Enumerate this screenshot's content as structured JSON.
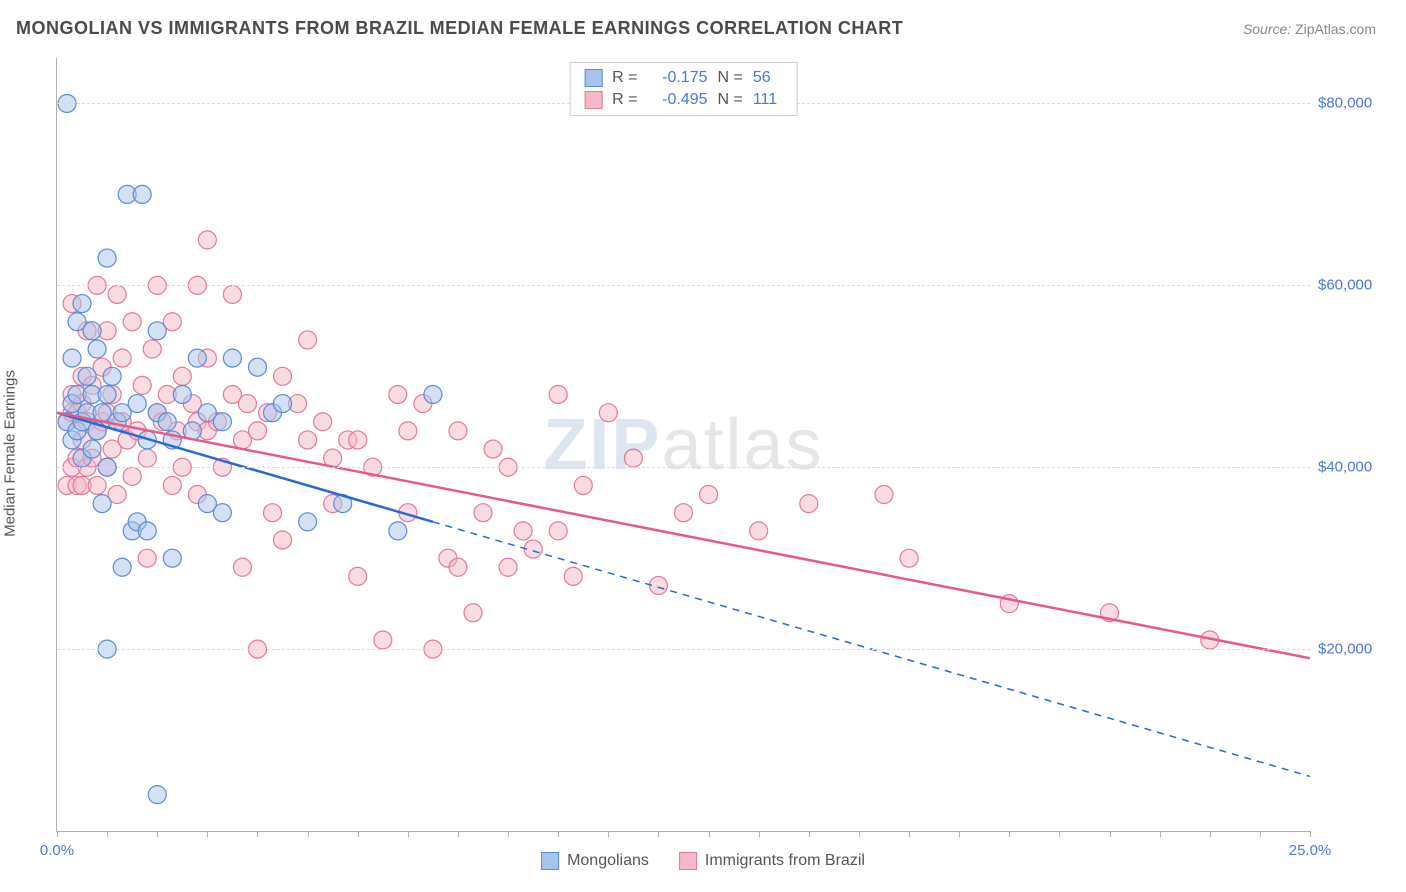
{
  "title": "MONGOLIAN VS IMMIGRANTS FROM BRAZIL MEDIAN FEMALE EARNINGS CORRELATION CHART",
  "source_prefix": "Source: ",
  "source_name": "ZipAtlas.com",
  "watermark_a": "ZIP",
  "watermark_b": "atlas",
  "chart": {
    "type": "scatter",
    "xlabel": "",
    "ylabel": "Median Female Earnings",
    "xlim": [
      0,
      25
    ],
    "ylim": [
      0,
      85000
    ],
    "x_ticks_minor_step": 1,
    "x_tick_labels": [
      {
        "value": 0,
        "label": "0.0%"
      },
      {
        "value": 25,
        "label": "25.0%"
      }
    ],
    "y_grid": [
      20000,
      40000,
      60000,
      80000
    ],
    "y_tick_labels": [
      {
        "value": 20000,
        "label": "$20,000"
      },
      {
        "value": 40000,
        "label": "$40,000"
      },
      {
        "value": 60000,
        "label": "$60,000"
      },
      {
        "value": 80000,
        "label": "$80,000"
      }
    ],
    "background_color": "#ffffff",
    "grid_color": "#dcdcdc",
    "axis_color": "#b0b0b0",
    "label_color": "#555555",
    "tick_label_color": "#4a77d4",
    "title_fontsize": 18,
    "label_fontsize": 15,
    "marker_radius": 9,
    "marker_opacity": 0.5,
    "series": [
      {
        "key": "mongolians",
        "name": "Mongolians",
        "fill": "#a9c4ec",
        "stroke": "#5b8bd4",
        "line_color": "#2a6ad0",
        "line_width": 2.5,
        "R": "-0.175",
        "N": "56",
        "regression": {
          "x1": 0,
          "y1": 46000,
          "x2": 25,
          "y2": 6000,
          "dash_after_x": 7.5
        },
        "points": [
          [
            0.2,
            80000
          ],
          [
            0.2,
            45000
          ],
          [
            0.3,
            47000
          ],
          [
            0.3,
            43000
          ],
          [
            0.3,
            52000
          ],
          [
            0.4,
            56000
          ],
          [
            0.4,
            48000
          ],
          [
            0.4,
            44000
          ],
          [
            0.5,
            58000
          ],
          [
            0.5,
            45000
          ],
          [
            0.5,
            41000
          ],
          [
            0.6,
            50000
          ],
          [
            0.6,
            46000
          ],
          [
            0.7,
            55000
          ],
          [
            0.7,
            48000
          ],
          [
            0.7,
            42000
          ],
          [
            0.8,
            44000
          ],
          [
            0.8,
            53000
          ],
          [
            0.9,
            46000
          ],
          [
            0.9,
            36000
          ],
          [
            1.0,
            63000
          ],
          [
            1.0,
            48000
          ],
          [
            1.0,
            40000
          ],
          [
            1.0,
            20000
          ],
          [
            1.1,
            50000
          ],
          [
            1.2,
            45000
          ],
          [
            1.3,
            46000
          ],
          [
            1.3,
            29000
          ],
          [
            1.4,
            70000
          ],
          [
            1.5,
            33000
          ],
          [
            1.6,
            47000
          ],
          [
            1.6,
            34000
          ],
          [
            1.7,
            70000
          ],
          [
            1.8,
            43000
          ],
          [
            1.8,
            33000
          ],
          [
            2.0,
            46000
          ],
          [
            2.0,
            55000
          ],
          [
            2.0,
            4000
          ],
          [
            2.2,
            45000
          ],
          [
            2.3,
            43000
          ],
          [
            2.3,
            30000
          ],
          [
            2.5,
            48000
          ],
          [
            2.7,
            44000
          ],
          [
            2.8,
            52000
          ],
          [
            3.0,
            46000
          ],
          [
            3.0,
            36000
          ],
          [
            3.3,
            45000
          ],
          [
            3.3,
            35000
          ],
          [
            3.5,
            52000
          ],
          [
            4.0,
            51000
          ],
          [
            4.3,
            46000
          ],
          [
            4.5,
            47000
          ],
          [
            5.0,
            34000
          ],
          [
            5.7,
            36000
          ],
          [
            6.8,
            33000
          ],
          [
            7.5,
            48000
          ]
        ]
      },
      {
        "key": "brazil",
        "name": "Immigrants from Brazil",
        "fill": "#f4b8c6",
        "stroke": "#e47a97",
        "line_color": "#e55a88",
        "line_width": 2.5,
        "R": "-0.495",
        "N": "111",
        "regression": {
          "x1": 0,
          "y1": 46000,
          "x2": 25,
          "y2": 19000,
          "dash_after_x": 25
        },
        "points": [
          [
            0.2,
            45000
          ],
          [
            0.2,
            38000
          ],
          [
            0.3,
            46000
          ],
          [
            0.3,
            58000
          ],
          [
            0.3,
            40000
          ],
          [
            0.3,
            48000
          ],
          [
            0.4,
            41000
          ],
          [
            0.4,
            46000
          ],
          [
            0.4,
            38000
          ],
          [
            0.5,
            50000
          ],
          [
            0.5,
            43000
          ],
          [
            0.5,
            38000
          ],
          [
            0.5,
            47000
          ],
          [
            0.6,
            55000
          ],
          [
            0.6,
            45000
          ],
          [
            0.6,
            40000
          ],
          [
            0.7,
            41000
          ],
          [
            0.7,
            49000
          ],
          [
            0.8,
            60000
          ],
          [
            0.8,
            44000
          ],
          [
            0.8,
            38000
          ],
          [
            0.9,
            51000
          ],
          [
            0.9,
            45000
          ],
          [
            1.0,
            46000
          ],
          [
            1.0,
            55000
          ],
          [
            1.0,
            40000
          ],
          [
            1.1,
            48000
          ],
          [
            1.1,
            42000
          ],
          [
            1.2,
            59000
          ],
          [
            1.2,
            37000
          ],
          [
            1.3,
            52000
          ],
          [
            1.3,
            45000
          ],
          [
            1.4,
            43000
          ],
          [
            1.5,
            56000
          ],
          [
            1.5,
            39000
          ],
          [
            1.6,
            44000
          ],
          [
            1.7,
            49000
          ],
          [
            1.8,
            41000
          ],
          [
            1.8,
            30000
          ],
          [
            1.9,
            53000
          ],
          [
            2.0,
            46000
          ],
          [
            2.0,
            60000
          ],
          [
            2.1,
            45000
          ],
          [
            2.2,
            48000
          ],
          [
            2.3,
            56000
          ],
          [
            2.3,
            38000
          ],
          [
            2.4,
            44000
          ],
          [
            2.5,
            50000
          ],
          [
            2.5,
            40000
          ],
          [
            2.7,
            47000
          ],
          [
            2.8,
            45000
          ],
          [
            2.8,
            37000
          ],
          [
            2.8,
            60000
          ],
          [
            3.0,
            65000
          ],
          [
            3.0,
            44000
          ],
          [
            3.0,
            52000
          ],
          [
            3.2,
            45000
          ],
          [
            3.3,
            40000
          ],
          [
            3.5,
            48000
          ],
          [
            3.5,
            59000
          ],
          [
            3.7,
            43000
          ],
          [
            3.7,
            29000
          ],
          [
            3.8,
            47000
          ],
          [
            4.0,
            44000
          ],
          [
            4.0,
            20000
          ],
          [
            4.2,
            46000
          ],
          [
            4.3,
            35000
          ],
          [
            4.5,
            50000
          ],
          [
            4.5,
            32000
          ],
          [
            4.8,
            47000
          ],
          [
            5.0,
            43000
          ],
          [
            5.0,
            54000
          ],
          [
            5.3,
            45000
          ],
          [
            5.5,
            41000
          ],
          [
            5.5,
            36000
          ],
          [
            5.8,
            43000
          ],
          [
            6.0,
            43000
          ],
          [
            6.0,
            28000
          ],
          [
            6.3,
            40000
          ],
          [
            6.5,
            21000
          ],
          [
            6.8,
            48000
          ],
          [
            7.0,
            44000
          ],
          [
            7.0,
            35000
          ],
          [
            7.3,
            47000
          ],
          [
            7.5,
            20000
          ],
          [
            7.8,
            30000
          ],
          [
            8.0,
            29000
          ],
          [
            8.0,
            44000
          ],
          [
            8.3,
            24000
          ],
          [
            8.5,
            35000
          ],
          [
            9.0,
            40000
          ],
          [
            9.0,
            29000
          ],
          [
            9.3,
            33000
          ],
          [
            9.5,
            31000
          ],
          [
            10.0,
            48000
          ],
          [
            10.0,
            33000
          ],
          [
            10.3,
            28000
          ],
          [
            11.0,
            46000
          ],
          [
            11.5,
            41000
          ],
          [
            12.0,
            27000
          ],
          [
            12.5,
            35000
          ],
          [
            13.0,
            37000
          ],
          [
            14.0,
            33000
          ],
          [
            15.0,
            36000
          ],
          [
            16.5,
            37000
          ],
          [
            17.0,
            30000
          ],
          [
            19.0,
            25000
          ],
          [
            21.0,
            24000
          ],
          [
            23.0,
            21000
          ],
          [
            10.5,
            38000
          ],
          [
            8.7,
            42000
          ]
        ]
      }
    ]
  },
  "legend_labels": {
    "R": "R =",
    "N": "N ="
  }
}
